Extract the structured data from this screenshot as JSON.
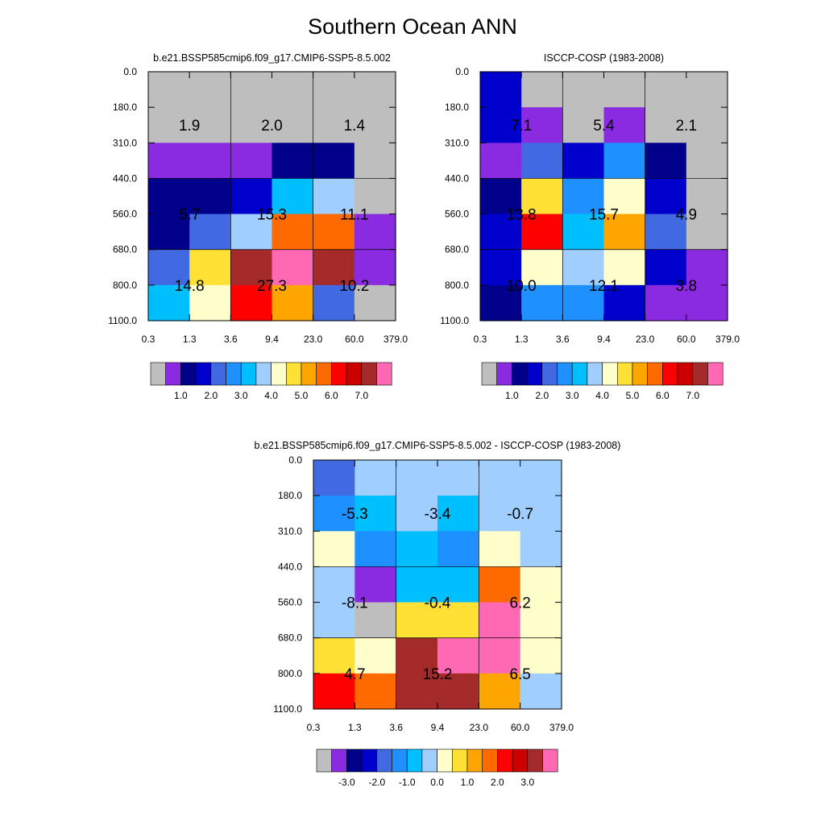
{
  "page": {
    "title": "Southern Ocean ANN"
  },
  "chart_data": [
    {
      "type": "heatmap",
      "title": "b.e21.BSSP585cmip6.f09_g17.CMIP6-SSP5-8.5.002",
      "x_ticks": [
        "0.3",
        "1.3",
        "3.6",
        "9.4",
        "23.0",
        "60.0",
        "379.0"
      ],
      "y_ticks": [
        "0.0",
        "180.0",
        "310.0",
        "440.0",
        "560.0",
        "680.0",
        "800.0",
        "1100.0"
      ],
      "xlabel": "",
      "ylabel": "",
      "cell_color_index": [
        [
          0,
          0,
          0,
          0,
          0,
          0
        ],
        [
          0,
          0,
          0,
          0,
          0,
          0
        ],
        [
          1,
          1,
          1,
          2,
          2,
          0
        ],
        [
          2,
          2,
          3,
          6,
          7,
          0
        ],
        [
          2,
          4,
          7,
          11,
          11,
          1
        ],
        [
          4,
          9,
          14,
          15,
          14,
          1
        ],
        [
          6,
          8,
          12,
          10,
          4,
          0
        ]
      ],
      "box_labels": [
        [
          "1.9",
          "2.0",
          "1.4"
        ],
        [
          "5.7",
          "15.3",
          "11.1"
        ],
        [
          "14.8",
          "27.3",
          "10.2"
        ]
      ],
      "colorbar": {
        "colors": [
          "#BEBEBE",
          "#8A2BE2",
          "#00008B",
          "#0000CD",
          "#4169E1",
          "#1E90FF",
          "#00BFFF",
          "#A0CFFF",
          "#FFFFCC",
          "#FFE135",
          "#FFA500",
          "#FF6A00",
          "#FF0000",
          "#CD0000",
          "#A52A2A",
          "#FF69B4"
        ],
        "tick_labels": [
          "1.0",
          "2.0",
          "3.0",
          "4.0",
          "5.0",
          "6.0",
          "7.0"
        ]
      }
    },
    {
      "type": "heatmap",
      "title": "ISCCP-COSP (1983-2008)",
      "x_ticks": [
        "0.3",
        "1.3",
        "3.6",
        "9.4",
        "23.0",
        "60.0",
        "379.0"
      ],
      "y_ticks": [
        "0.0",
        "180.0",
        "310.0",
        "440.0",
        "560.0",
        "680.0",
        "800.0",
        "1100.0"
      ],
      "xlabel": "",
      "ylabel": "",
      "cell_color_index": [
        [
          3,
          0,
          0,
          0,
          0,
          0
        ],
        [
          3,
          1,
          0,
          1,
          0,
          0
        ],
        [
          1,
          4,
          3,
          5,
          2,
          0
        ],
        [
          2,
          9,
          5,
          8,
          3,
          0
        ],
        [
          3,
          12,
          6,
          10,
          4,
          0
        ],
        [
          3,
          8,
          7,
          8,
          3,
          1
        ],
        [
          2,
          5,
          5,
          3,
          1,
          1
        ]
      ],
      "box_labels": [
        [
          "7.1",
          "5.4",
          "2.1"
        ],
        [
          "13.8",
          "15.7",
          "4.9"
        ],
        [
          "10.0",
          "12.1",
          "3.8"
        ]
      ],
      "colorbar": {
        "colors": [
          "#BEBEBE",
          "#8A2BE2",
          "#00008B",
          "#0000CD",
          "#4169E1",
          "#1E90FF",
          "#00BFFF",
          "#A0CFFF",
          "#FFFFCC",
          "#FFE135",
          "#FFA500",
          "#FF6A00",
          "#FF0000",
          "#CD0000",
          "#A52A2A",
          "#FF69B4"
        ],
        "tick_labels": [
          "1.0",
          "2.0",
          "3.0",
          "4.0",
          "5.0",
          "6.0",
          "7.0"
        ]
      }
    },
    {
      "type": "heatmap",
      "title": "b.e21.BSSP585cmip6.f09_g17.CMIP6-SSP5-8.5.002 - ISCCP-COSP (1983-2008)",
      "x_ticks": [
        "0.3",
        "1.3",
        "3.6",
        "9.4",
        "23.0",
        "60.0",
        "379.0"
      ],
      "y_ticks": [
        "0.0",
        "180.0",
        "310.0",
        "440.0",
        "560.0",
        "680.0",
        "800.0",
        "1100.0"
      ],
      "xlabel": "",
      "ylabel": "",
      "cell_color_index": [
        [
          4,
          7,
          7,
          7,
          7,
          7
        ],
        [
          5,
          6,
          7,
          6,
          7,
          7
        ],
        [
          8,
          5,
          6,
          5,
          8,
          7
        ],
        [
          7,
          1,
          6,
          6,
          11,
          8
        ],
        [
          7,
          0,
          9,
          9,
          15,
          8
        ],
        [
          9,
          8,
          14,
          15,
          15,
          8
        ],
        [
          12,
          11,
          14,
          14,
          10,
          7
        ]
      ],
      "box_labels": [
        [
          "-5.3",
          "-3.4",
          "-0.7"
        ],
        [
          "-8.1",
          "-0.4",
          "6.2"
        ],
        [
          "4.7",
          "15.2",
          "6.5"
        ]
      ],
      "colorbar": {
        "colors": [
          "#BEBEBE",
          "#8A2BE2",
          "#00008B",
          "#0000CD",
          "#4169E1",
          "#1E90FF",
          "#00BFFF",
          "#A0CFFF",
          "#FFFFCC",
          "#FFE135",
          "#FFA500",
          "#FF6A00",
          "#FF0000",
          "#CD0000",
          "#A52A2A",
          "#FF69B4"
        ],
        "tick_labels": [
          "-3.0",
          "-2.0",
          "-1.0",
          "0.0",
          "1.0",
          "2.0",
          "3.0"
        ]
      }
    }
  ]
}
